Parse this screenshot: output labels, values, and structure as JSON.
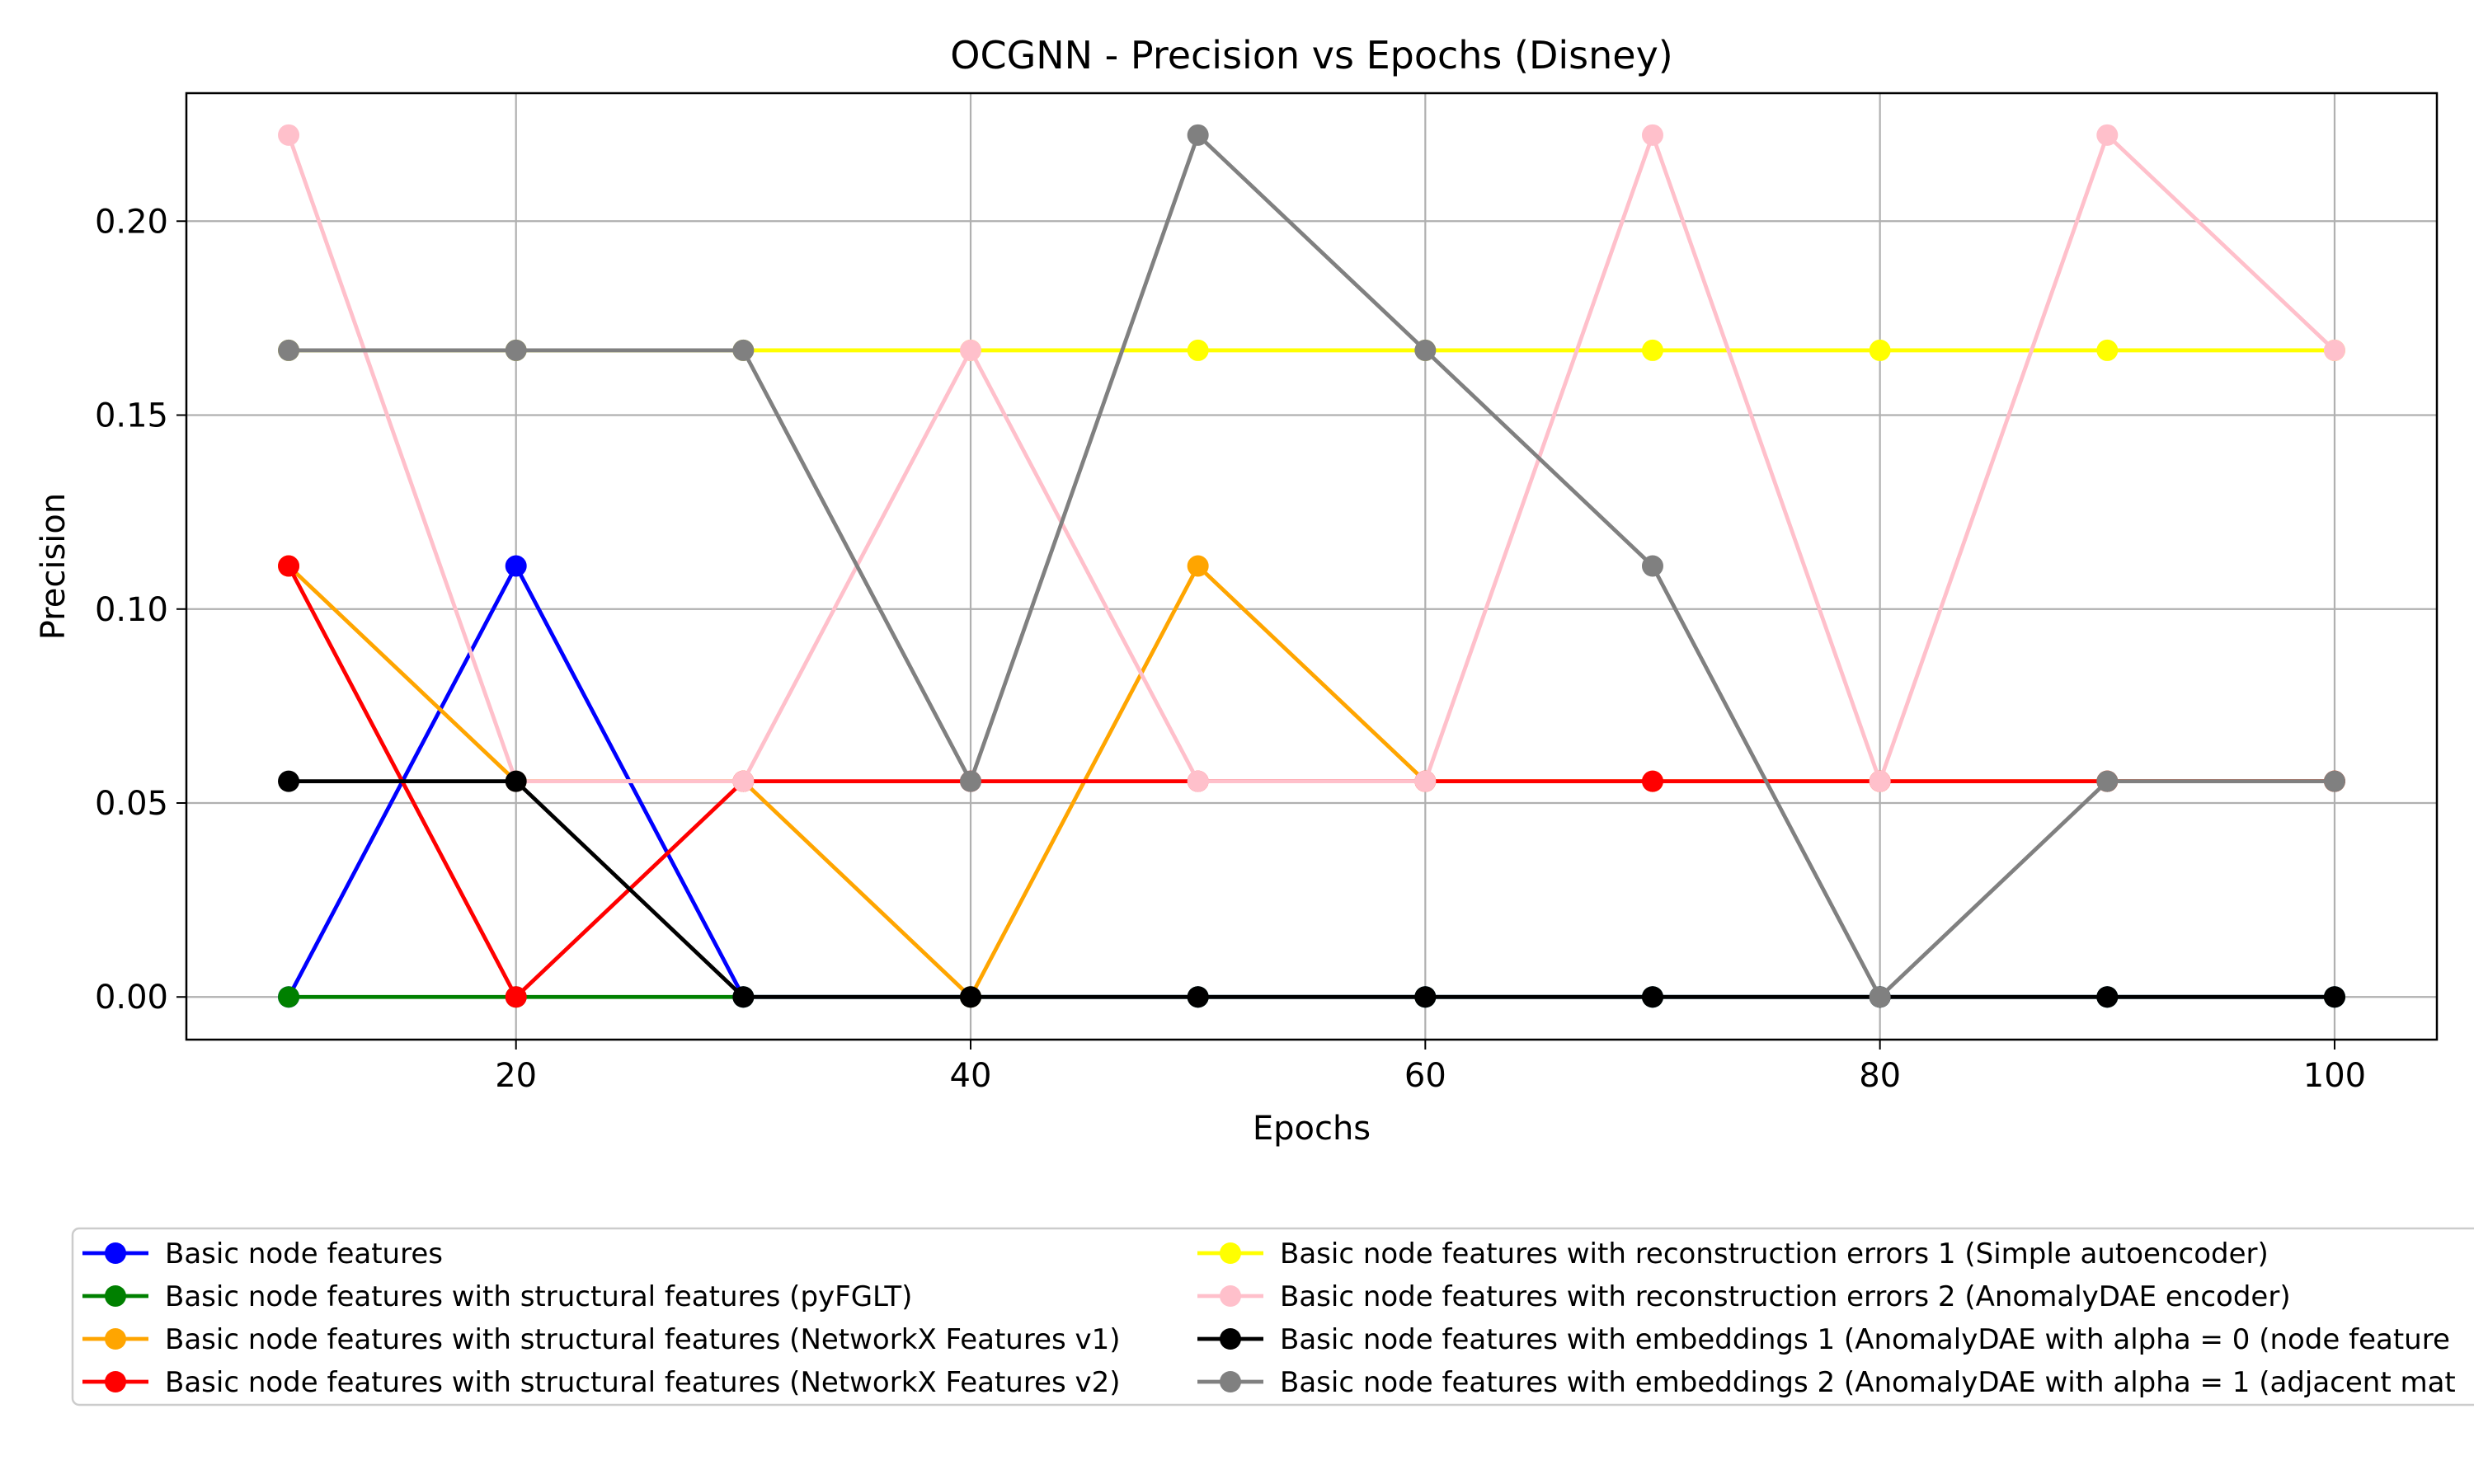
{
  "chart_data": {
    "type": "line",
    "title": "OCGNN - Precision vs Epochs (Disney)",
    "xlabel": "Epochs",
    "ylabel": "Precision",
    "xlim": [
      5.5,
      104.5
    ],
    "ylim": [
      -0.011,
      0.233
    ],
    "xticks": [
      20,
      40,
      60,
      80,
      100
    ],
    "yticks": [
      0.0,
      0.05,
      0.1,
      0.15,
      0.2
    ],
    "xtick_labels": [
      "20",
      "40",
      "60",
      "80",
      "100"
    ],
    "ytick_labels": [
      "0.00",
      "0.05",
      "0.10",
      "0.15",
      "0.20"
    ],
    "grid": true,
    "legend_position": "bottom",
    "x": [
      10,
      20,
      30,
      40,
      50,
      60,
      70,
      80,
      90,
      100
    ],
    "series": [
      {
        "name": "Basic node features",
        "color": "#0000ff",
        "values": [
          0.0,
          0.1111,
          0.0,
          0.0,
          0.0,
          0.0,
          0.0,
          0.0,
          0.0,
          0.0
        ]
      },
      {
        "name": "Basic node features with structural features (pyFGLT)",
        "color": "#008000",
        "values": [
          0.0,
          0.0,
          0.0,
          0.0,
          0.0,
          0.0,
          0.0,
          0.0,
          0.0,
          0.0
        ]
      },
      {
        "name": "Basic node features with structural features (NetworkX Features v1)",
        "color": "#ffa500",
        "values": [
          0.1111,
          0.0556,
          0.0556,
          0.0,
          0.1111,
          0.0556,
          0.0556,
          0.0556,
          0.0556,
          0.0556
        ]
      },
      {
        "name": "Basic node features with structural features (NetworkX Features v2)",
        "color": "#ff0000",
        "values": [
          0.1111,
          0.0,
          0.0556,
          0.0556,
          0.0556,
          0.0556,
          0.0556,
          0.0556,
          0.0556,
          0.0556
        ]
      },
      {
        "name": "Basic node features with reconstruction errors 1 (Simple autoencoder)",
        "color": "#ffff00",
        "values": [
          0.1667,
          0.1667,
          0.1667,
          0.1667,
          0.1667,
          0.1667,
          0.1667,
          0.1667,
          0.1667,
          0.1667
        ]
      },
      {
        "name": "Basic node features with reconstruction errors 2 (AnomalyDAE encoder)",
        "color": "#ffc0cb",
        "values": [
          0.2222,
          0.0556,
          0.0556,
          0.1667,
          0.0556,
          0.0556,
          0.2222,
          0.0556,
          0.2222,
          0.1667
        ]
      },
      {
        "name": "Basic node features with embeddings 1 (AnomalyDAE with alpha = 0 (node feature",
        "color": "#000000",
        "values": [
          0.0556,
          0.0556,
          0.0,
          0.0,
          0.0,
          0.0,
          0.0,
          0.0,
          0.0,
          0.0
        ]
      },
      {
        "name": "Basic node features with embeddings 2 (AnomalyDAE with alpha = 1 (adjacent mat",
        "color": "#808080",
        "values": [
          0.1667,
          0.1667,
          0.1667,
          0.0556,
          0.2222,
          0.1667,
          0.1111,
          0.0,
          0.0556,
          0.0556
        ]
      }
    ]
  }
}
